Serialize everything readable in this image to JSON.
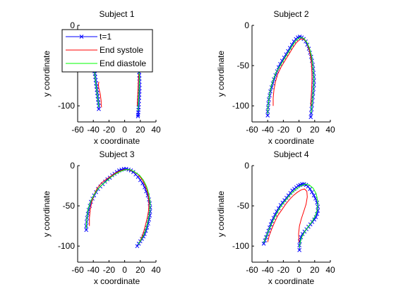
{
  "chart_data": [
    {
      "type": "line",
      "title": "Subject 1",
      "xlabel": "x coordinate",
      "ylabel": "y coordinate",
      "xlim": [
        -60,
        40
      ],
      "ylim": [
        -120,
        0
      ],
      "xticks": [
        -60,
        -40,
        -20,
        0,
        20,
        40
      ],
      "yticks": [
        0,
        -50,
        -100
      ],
      "series": [
        {
          "name": "t=1",
          "color": "#0000ff",
          "marker": "x",
          "x": [
            -37,
            -38,
            -38.5,
            -38.5,
            -38.5,
            -38,
            -37.5,
            -37,
            -36.5,
            -36,
            -35.5,
            -35,
            -34.5,
            -34,
            -33.5,
            -33,
            -33,
            null,
            18,
            18.3,
            18.5,
            18.7,
            18.8,
            18.9,
            19,
            19,
            18.9,
            18.7,
            18.5,
            18.2,
            18,
            17.8,
            17.6,
            17.4,
            17.2,
            17
          ],
          "y": [
            -45,
            -48,
            -51,
            -54,
            -57,
            -60,
            -64,
            -68,
            -72,
            -76,
            -80,
            -84,
            -88,
            -92,
            -96,
            -100,
            -104,
            null,
            -50,
            -54,
            -58,
            -62,
            -66,
            -70,
            -74,
            -78,
            -82,
            -86,
            -90,
            -94,
            -98,
            -102,
            -105,
            -108,
            -111,
            -113
          ]
        },
        {
          "name": "End systole",
          "color": "#ff0000",
          "x": [
            -33,
            -33.5,
            -33,
            -32,
            -31,
            -30.5,
            -30,
            -30,
            -29.5,
            null,
            18,
            17.5,
            17,
            16.5,
            16
          ],
          "y": [
            -70,
            -74,
            -78,
            -82,
            -86,
            -90,
            -94,
            -98,
            -102,
            null,
            -60,
            -70,
            -80,
            -90,
            -100
          ]
        },
        {
          "name": "End diastole",
          "color": "#00ff00",
          "x": [
            -37,
            -38,
            -38.5,
            -38,
            -37,
            -36,
            -35,
            -34,
            -33,
            null,
            18,
            18.5,
            19,
            18.8,
            18.4,
            18,
            17.6,
            17.2
          ],
          "y": [
            -45,
            -50,
            -56,
            -62,
            -70,
            -78,
            -86,
            -94,
            -102,
            null,
            -50,
            -58,
            -66,
            -74,
            -82,
            -90,
            -98,
            -106
          ]
        }
      ],
      "legend": {
        "entries": [
          "t=1",
          "End systole",
          "End diastole"
        ],
        "placement": "top-left"
      }
    },
    {
      "type": "line",
      "title": "Subject 2",
      "xlabel": "x coordinate",
      "ylabel": "y coordinate",
      "xlim": [
        -60,
        40
      ],
      "ylim": [
        -120,
        0
      ],
      "xticks": [
        -60,
        -40,
        -20,
        0,
        20,
        40
      ],
      "yticks": [
        0,
        -50,
        -100
      ],
      "series": [
        {
          "name": "t=1",
          "color": "#0000ff",
          "marker": "x",
          "x": [
            -40,
            -40,
            -39.5,
            -39,
            -38.5,
            -37.5,
            -36.5,
            -35,
            -33.5,
            -32,
            -30,
            -28,
            -26,
            -24,
            -21.5,
            -19,
            -16.5,
            -14,
            -11.5,
            -9,
            -6.5,
            -4,
            -1.5,
            1,
            3.5,
            6,
            8.5,
            10.5,
            12.5,
            14,
            15.5,
            16.5,
            17.5,
            18,
            18.5,
            19,
            19,
            19,
            18.5,
            18,
            17.5,
            17,
            16.5,
            16,
            15.5,
            15
          ],
          "y": [
            -112,
            -107,
            -102,
            -97,
            -92,
            -87,
            -82,
            -77,
            -72,
            -67,
            -62,
            -57,
            -52,
            -48,
            -44,
            -40,
            -36,
            -32,
            -28,
            -24,
            -20,
            -17,
            -15,
            -14,
            -15,
            -17,
            -20,
            -24,
            -29,
            -34,
            -39,
            -44,
            -49,
            -54,
            -59,
            -64,
            -69,
            -74,
            -79,
            -84,
            -89,
            -94,
            -99,
            -104,
            -109,
            -114
          ]
        },
        {
          "name": "End systole",
          "color": "#ff0000",
          "x": [
            -33,
            -33,
            -32,
            -30,
            -27,
            -23,
            -18,
            -13,
            -8,
            -3,
            2,
            6,
            10,
            13,
            15,
            16,
            16.5,
            16.5,
            16,
            15.5,
            15
          ],
          "y": [
            -100,
            -90,
            -80,
            -70,
            -60,
            -52,
            -44,
            -36,
            -28,
            -21,
            -17,
            -17,
            -21,
            -30,
            -40,
            -50,
            -60,
            -70,
            -80,
            -90,
            -100
          ]
        },
        {
          "name": "End diastole",
          "color": "#00ff00",
          "x": [
            -40,
            -39.5,
            -38,
            -36,
            -33,
            -29,
            -24,
            -19,
            -14,
            -9,
            -4,
            1,
            6,
            10,
            13.5,
            16,
            17.5,
            18.5,
            19,
            18.5,
            17.5,
            16.5,
            15.5
          ],
          "y": [
            -110,
            -100,
            -88,
            -78,
            -68,
            -58,
            -50,
            -42,
            -34,
            -26,
            -19,
            -15,
            -16,
            -21,
            -29,
            -39,
            -49,
            -59,
            -69,
            -79,
            -89,
            -99,
            -109
          ]
        }
      ]
    },
    {
      "type": "line",
      "title": "Subject 3",
      "xlabel": "x coordinate",
      "ylabel": "y coordinate",
      "xlim": [
        -60,
        40
      ],
      "ylim": [
        -120,
        0
      ],
      "xticks": [
        -60,
        -40,
        -20,
        0,
        20,
        40
      ],
      "yticks": [
        0,
        -50,
        -100
      ],
      "series": [
        {
          "name": "t=1",
          "color": "#0000ff",
          "marker": "x",
          "x": [
            -49,
            -49,
            -48.5,
            -48,
            -47,
            -46,
            -44.5,
            -43,
            -41,
            -39,
            -36.5,
            -34,
            -31,
            -28,
            -25,
            -22,
            -19,
            -16,
            -13,
            -10,
            -7,
            -4,
            -1,
            2,
            5,
            8,
            11,
            14,
            17,
            20,
            23,
            25.5,
            27.5,
            29.5,
            31,
            32,
            32.5,
            32.5,
            32,
            31,
            30,
            28.5,
            27,
            25.5,
            24,
            22,
            20,
            18,
            16
          ],
          "y": [
            -80,
            -75,
            -70,
            -65,
            -60,
            -55,
            -50,
            -45,
            -41,
            -37,
            -33,
            -29,
            -26,
            -23,
            -20,
            -17,
            -15,
            -12,
            -10,
            -8,
            -6,
            -5,
            -4,
            -4,
            -5,
            -6,
            -8,
            -11,
            -14,
            -18,
            -22,
            -27,
            -32,
            -37,
            -42,
            -47,
            -52,
            -57,
            -62,
            -67,
            -72,
            -77,
            -81,
            -85,
            -88,
            -91,
            -94,
            -97,
            -100
          ]
        },
        {
          "name": "End systole",
          "color": "#ff0000",
          "x": [
            -45,
            -45,
            -44,
            -42,
            -39,
            -35,
            -30,
            -25,
            -19,
            -13,
            -7,
            -1,
            5,
            11,
            17,
            22,
            26,
            29,
            30.5,
            31,
            30.5,
            29,
            27,
            25,
            23,
            21,
            19
          ],
          "y": [
            -75,
            -65,
            -55,
            -45,
            -36,
            -28,
            -22,
            -18,
            -14,
            -10,
            -7,
            -5,
            -5,
            -7,
            -11,
            -17,
            -24,
            -32,
            -40,
            -48,
            -56,
            -64,
            -72,
            -80,
            -86,
            -91,
            -95
          ]
        },
        {
          "name": "End diastole",
          "color": "#00ff00",
          "x": [
            -49,
            -48.5,
            -47,
            -44,
            -40,
            -35,
            -29,
            -23,
            -17,
            -11,
            -5,
            1,
            7,
            13,
            19,
            24,
            28,
            31,
            32.5,
            32,
            30,
            27.5,
            24.5,
            21,
            17.5
          ],
          "y": [
            -78,
            -68,
            -56,
            -46,
            -38,
            -30,
            -24,
            -19,
            -14,
            -10,
            -7,
            -5,
            -5,
            -8,
            -12,
            -18,
            -26,
            -36,
            -46,
            -58,
            -68,
            -78,
            -86,
            -92,
            -98
          ]
        }
      ]
    },
    {
      "type": "line",
      "title": "Subject 4",
      "xlabel": "x coordinate",
      "ylabel": "y coordinate",
      "xlim": [
        -60,
        40
      ],
      "ylim": [
        -120,
        0
      ],
      "xticks": [
        -60,
        -40,
        -20,
        0,
        20,
        40
      ],
      "yticks": [
        0,
        -50,
        -100
      ],
      "series": [
        {
          "name": "t=1",
          "color": "#0000ff",
          "marker": "x",
          "x": [
            -45,
            -43.5,
            -42,
            -40.5,
            -39,
            -37.5,
            -36,
            -34.5,
            -32.5,
            -30.5,
            -28.5,
            -26,
            -23.5,
            -21,
            -18.5,
            -16,
            -13.5,
            -11,
            -8.5,
            -6,
            -3.5,
            -1,
            1.5,
            4,
            6.5,
            9,
            11.5,
            14,
            16.5,
            19,
            21,
            23,
            24,
            24,
            23,
            21.5,
            19.5,
            17,
            14.5,
            12,
            9.5,
            7,
            4.5,
            2.5,
            1,
            0.5,
            0.5
          ],
          "y": [
            -97,
            -93,
            -89,
            -85,
            -81,
            -77,
            -73,
            -69,
            -65,
            -61,
            -57,
            -53,
            -49,
            -46,
            -43,
            -40,
            -37,
            -34,
            -31,
            -29,
            -27,
            -25,
            -24,
            -23,
            -23,
            -24,
            -26,
            -29,
            -33,
            -37,
            -41,
            -46,
            -51,
            -56,
            -60,
            -64,
            -67,
            -70,
            -73,
            -76,
            -79,
            -82,
            -85,
            -89,
            -94,
            -99,
            -105
          ]
        },
        {
          "name": "End systole",
          "color": "#ff0000",
          "x": [
            -40,
            -38,
            -35,
            -31,
            -27,
            -22,
            -17,
            -12,
            -7,
            -2,
            3,
            7,
            10,
            10.5,
            9,
            6,
            3,
            0.5,
            -0.5,
            0
          ],
          "y": [
            -95,
            -87,
            -79,
            -70,
            -62,
            -55,
            -48,
            -42,
            -37,
            -33,
            -30,
            -29,
            -32,
            -39,
            -48,
            -57,
            -66,
            -75,
            -85,
            -95
          ]
        },
        {
          "name": "End diastole",
          "color": "#00ff00",
          "x": [
            -45,
            -42,
            -38.5,
            -35,
            -31,
            -26.5,
            -22,
            -17,
            -12,
            -7,
            -2,
            3,
            8,
            13,
            18,
            22,
            24,
            23.5,
            21,
            17,
            12.5,
            8,
            4,
            1.5,
            0.5
          ],
          "y": [
            -96,
            -88,
            -80,
            -72,
            -64,
            -56,
            -49,
            -43,
            -37,
            -32,
            -28,
            -25,
            -23,
            -24,
            -28,
            -35,
            -45,
            -54,
            -62,
            -69,
            -75,
            -81,
            -88,
            -95,
            -102
          ]
        }
      ]
    }
  ]
}
